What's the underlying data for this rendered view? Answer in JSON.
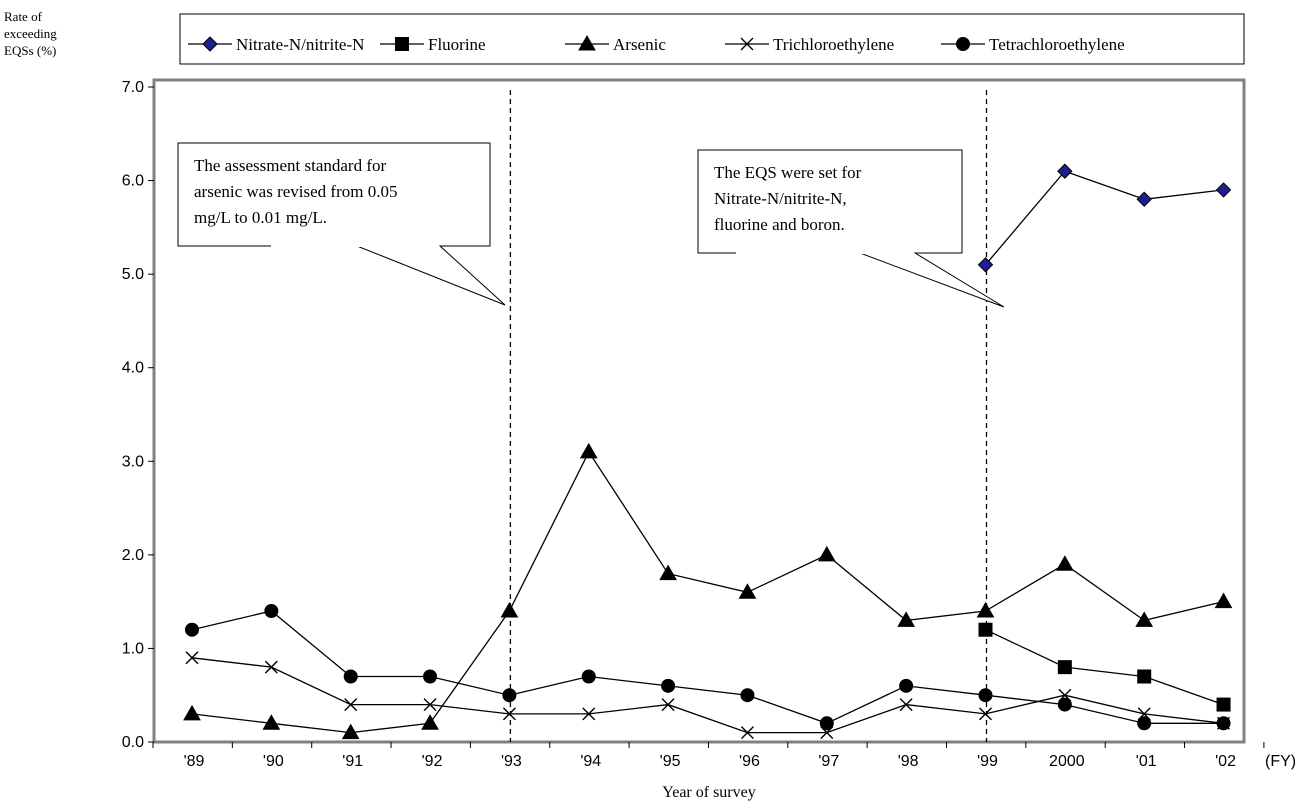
{
  "chart_data": {
    "type": "line",
    "ylabel": [
      "Rate of",
      "exceeding",
      "EQSs (%)"
    ],
    "xlabel": "Year of survey",
    "x_unit": "(FY)",
    "categories": [
      "'89",
      "'90",
      "'91",
      "'92",
      "'93",
      "'94",
      "'95",
      "'96",
      "'97",
      "'98",
      "'99",
      "2000",
      "'01",
      "'02"
    ],
    "yticks": [
      "0.0",
      "1.0",
      "2.0",
      "3.0",
      "4.0",
      "5.0",
      "6.0",
      "7.0"
    ],
    "ylim": [
      0,
      7
    ],
    "grid": false,
    "legend_position": "top",
    "series": [
      {
        "name": "Nitrate-N/nitrite-N",
        "marker": "diamond",
        "color": "#1f1f8f",
        "values": [
          null,
          null,
          null,
          null,
          null,
          null,
          null,
          null,
          null,
          null,
          5.1,
          6.1,
          5.8,
          5.9
        ]
      },
      {
        "name": "Fluorine",
        "marker": "square",
        "color": "#000000",
        "values": [
          null,
          null,
          null,
          null,
          null,
          null,
          null,
          null,
          null,
          null,
          1.2,
          0.8,
          0.7,
          0.4
        ]
      },
      {
        "name": "Arsenic",
        "marker": "triangle",
        "color": "#000000",
        "values": [
          0.3,
          0.2,
          0.1,
          0.2,
          1.4,
          3.1,
          1.8,
          1.6,
          2.0,
          1.3,
          1.4,
          1.9,
          1.3,
          1.5
        ]
      },
      {
        "name": "Trichloroethylene",
        "marker": "x",
        "color": "#000000",
        "values": [
          0.9,
          0.8,
          0.4,
          0.4,
          0.3,
          0.3,
          0.4,
          0.1,
          0.1,
          0.4,
          0.3,
          0.5,
          0.3,
          0.2
        ]
      },
      {
        "name": "Tetrachloroethylene",
        "marker": "circle",
        "color": "#000000",
        "values": [
          1.2,
          1.4,
          0.7,
          0.7,
          0.5,
          0.7,
          0.6,
          0.5,
          0.2,
          0.6,
          0.5,
          0.4,
          0.2,
          0.2
        ]
      }
    ],
    "annotations": [
      {
        "lines": [
          "The assessment standard for",
          "arsenic was revised from 0.05",
          "mg/L to 0.01 mg/L."
        ],
        "year": "'93"
      },
      {
        "lines": [
          "The EQS were set for",
          "Nitrate-N/nitrite-N,",
          "fluorine and boron."
        ],
        "year": "'99"
      }
    ]
  }
}
